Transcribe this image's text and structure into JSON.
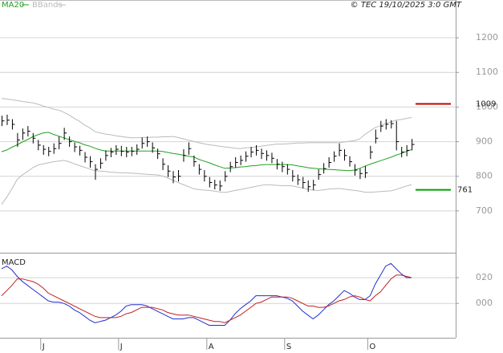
{
  "chart_data": [
    {
      "type": "ohlc",
      "legend": [
        "MA20",
        "BBands"
      ],
      "credit": "© TEC 19/10/2025 3:0 GMT",
      "ylim": [
        584,
        1309
      ],
      "yticks": [
        700,
        800,
        900,
        1000,
        1100,
        1200
      ],
      "grid": true,
      "levels": [
        {
          "value": 1009,
          "color": "#c00000"
        },
        {
          "value": 761,
          "color": "#00a000"
        }
      ],
      "ohlc": {
        "color": "#000000",
        "high": [
          975,
          978,
          965,
          925,
          938,
          945,
          925,
          905,
          890,
          885,
          895,
          915,
          940,
          915,
          898,
          888,
          870,
          858,
          835,
          852,
          875,
          882,
          890,
          888,
          885,
          885,
          892,
          912,
          915,
          898,
          880,
          852,
          832,
          815,
          818,
          878,
          898,
          860,
          835,
          818,
          798,
          790,
          788,
          815,
          842,
          855,
          860,
          872,
          885,
          890,
          880,
          875,
          868,
          850,
          842,
          835,
          818,
          805,
          798,
          788,
          790,
          820,
          838,
          855,
          872,
          895,
          878,
          858,
          835,
          822,
          830,
          888,
          935,
          960,
          965,
          962,
          960,
          885,
          890,
          908
        ],
        "low": [
          945,
          948,
          935,
          885,
          905,
          915,
          895,
          875,
          862,
          858,
          865,
          878,
          905,
          885,
          870,
          860,
          840,
          825,
          790,
          822,
          845,
          855,
          862,
          858,
          855,
          858,
          862,
          880,
          885,
          868,
          850,
          818,
          798,
          780,
          785,
          842,
          862,
          828,
          805,
          785,
          768,
          762,
          758,
          785,
          812,
          825,
          832,
          842,
          855,
          860,
          850,
          845,
          838,
          820,
          812,
          805,
          785,
          775,
          765,
          755,
          760,
          790,
          808,
          825,
          842,
          858,
          845,
          828,
          802,
          792,
          795,
          850,
          895,
          928,
          935,
          938,
          875,
          855,
          858,
          875
        ],
        "close": [
          960,
          962,
          950,
          905,
          925,
          930,
          910,
          890,
          878,
          872,
          880,
          895,
          925,
          900,
          885,
          875,
          855,
          842,
          820,
          838,
          860,
          870,
          878,
          872,
          870,
          872,
          878,
          895,
          900,
          882,
          865,
          835,
          815,
          798,
          800,
          860,
          880,
          842,
          820,
          800,
          782,
          775,
          772,
          800,
          828,
          840,
          846,
          858,
          870,
          875,
          866,
          860,
          852,
          835,
          828,
          820,
          800,
          790,
          782,
          770,
          775,
          805,
          822,
          840,
          858,
          875,
          860,
          842,
          818,
          808,
          810,
          870,
          910,
          945,
          950,
          952,
          900,
          870,
          875,
          892
        ]
      },
      "ma": {
        "name": "MA20",
        "color": "#22a022",
        "values": [
          871,
          876,
          884,
          891,
          899,
          906,
          914,
          920,
          925,
          927,
          921,
          916,
          911,
          906,
          901,
          897,
          891,
          887,
          881,
          876,
          873,
          873,
          873,
          873,
          873,
          873,
          873,
          873,
          873,
          873,
          873,
          872,
          869,
          866,
          864,
          861,
          858,
          856,
          849,
          844,
          839,
          833,
          828,
          823,
          824,
          825,
          827,
          828,
          830,
          831,
          833,
          834,
          834,
          834,
          834,
          834,
          833,
          830,
          828,
          825,
          823,
          822,
          821,
          820,
          819,
          818,
          817,
          816,
          818,
          823,
          829,
          835,
          840,
          845,
          850,
          855,
          861,
          866,
          872,
          877
        ]
      },
      "bands": {
        "name": "BBands",
        "color": "#bbbbbb",
        "upper": [
          1025,
          1023,
          1021,
          1019,
          1016,
          1014,
          1012,
          1008,
          1003,
          999,
          994,
          991,
          985,
          977,
          967,
          959,
          948,
          940,
          929,
          925,
          922,
          920,
          917,
          915,
          913,
          911,
          911,
          912,
          912,
          913,
          913,
          914,
          914,
          915,
          912,
          908,
          904,
          901,
          897,
          894,
          891,
          889,
          887,
          885,
          883,
          881,
          880,
          882,
          883,
          885,
          887,
          889,
          891,
          893,
          893,
          894,
          895,
          896,
          896,
          897,
          897,
          897,
          897,
          897,
          897,
          897,
          899,
          901,
          903,
          908,
          921,
          931,
          941,
          946,
          952,
          957,
          962,
          964,
          967,
          970
        ],
        "lower": [
          719,
          740,
          764,
          791,
          804,
          814,
          825,
          832,
          836,
          839,
          842,
          844,
          846,
          842,
          836,
          831,
          826,
          821,
          816,
          815,
          814,
          812,
          811,
          810,
          810,
          809,
          808,
          807,
          806,
          805,
          804,
          801,
          795,
          789,
          782,
          776,
          770,
          764,
          762,
          760,
          759,
          757,
          755,
          753,
          756,
          759,
          762,
          765,
          768,
          771,
          774,
          776,
          775,
          774,
          773,
          773,
          772,
          769,
          766,
          763,
          760,
          759,
          761,
          763,
          764,
          765,
          763,
          761,
          759,
          757,
          754,
          754,
          755,
          756,
          757,
          758,
          762,
          767,
          772,
          776
        ]
      }
    },
    {
      "type": "line",
      "title": "MACD",
      "categories": [
        null,
        null,
        null,
        null,
        null,
        null,
        null,
        null,
        "J",
        null,
        null,
        null,
        null,
        null,
        null,
        null,
        null,
        null,
        null,
        null,
        null,
        null,
        null,
        "J",
        null,
        null,
        null,
        null,
        null,
        null,
        null,
        null,
        null,
        null,
        null,
        null,
        null,
        null,
        null,
        null,
        "A",
        null,
        null,
        null,
        null,
        null,
        null,
        null,
        null,
        null,
        null,
        null,
        null,
        null,
        null,
        "S",
        null,
        null,
        null,
        null,
        null,
        null,
        null,
        null,
        null,
        null,
        null,
        null,
        null,
        null,
        null,
        "O",
        null,
        null,
        null,
        null,
        null,
        null,
        null,
        null
      ],
      "ylim": [
        -26,
        37.5
      ],
      "yticks": [
        {
          "value": 20,
          "label": "020"
        },
        {
          "value": 0,
          "label": "000"
        }
      ],
      "grid": true,
      "series": [
        {
          "color": "#2030d0",
          "values": [
            27,
            29,
            26,
            21,
            17,
            14,
            11,
            8,
            5,
            2,
            1,
            1,
            0,
            -2,
            -5,
            -7,
            -10,
            -13,
            -15,
            -14,
            -13,
            -11,
            -9,
            -6,
            -2,
            -1,
            -1,
            -1,
            -2,
            -4,
            -6,
            -8,
            -10,
            -12,
            -12,
            -12,
            -11,
            -11,
            -13,
            -15,
            -17,
            -17,
            -17,
            -17,
            -13,
            -8,
            -4,
            -1,
            2,
            6,
            6,
            6,
            6,
            6,
            5,
            4,
            2,
            -2,
            -6,
            -9,
            -12,
            -9,
            -5,
            -1,
            2,
            6,
            10,
            8,
            5,
            3,
            3,
            6,
            15,
            22,
            29,
            31,
            27,
            23,
            20,
            20
          ]
        },
        {
          "color": "#c02020",
          "values": [
            6,
            10,
            14,
            19,
            19,
            18,
            17,
            15,
            12,
            8,
            6,
            4,
            2,
            0,
            -2,
            -4,
            -6,
            -8,
            -10,
            -11,
            -11,
            -11,
            -11,
            -10,
            -8,
            -7,
            -5,
            -3,
            -3,
            -3,
            -4,
            -5,
            -7,
            -8,
            -9,
            -9,
            -9,
            -10,
            -11,
            -12,
            -13,
            -14,
            -14,
            -15,
            -13,
            -11,
            -9,
            -6,
            -3,
            0,
            1,
            3,
            5,
            5,
            5,
            5,
            4,
            2,
            0,
            -2,
            -2,
            -3,
            -3,
            -2,
            0,
            2,
            3,
            5,
            6,
            5,
            3,
            2,
            6,
            9,
            14,
            19,
            22,
            22,
            21,
            20
          ]
        }
      ]
    }
  ]
}
